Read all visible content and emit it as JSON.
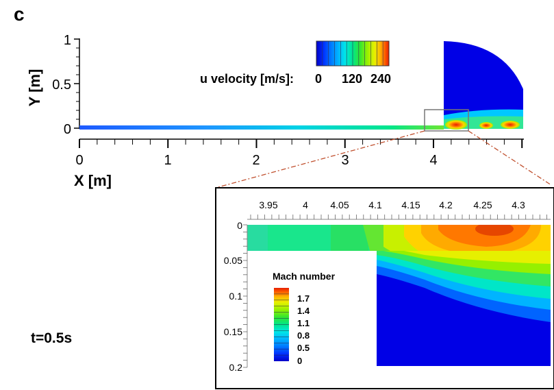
{
  "panel_label": "c",
  "time_label": "t=0.5s",
  "main_plot": {
    "x_axis_label": "X [m]",
    "y_axis_label": "Y [m]",
    "x_ticks": [
      "0",
      "1",
      "2",
      "3",
      "4"
    ],
    "y_ticks": [
      "0",
      "0.5",
      "1"
    ],
    "colorbar_title": "u velocity [m/s]:",
    "colorbar_ticks": [
      "0",
      "120",
      "240"
    ]
  },
  "inset_plot": {
    "x_ticks": [
      "3.95",
      "4",
      "4.05",
      "4.1",
      "4.15",
      "4.2",
      "4.25",
      "4.3"
    ],
    "y_ticks": [
      "0",
      "0.05",
      "0.1",
      "0.15",
      "0.2"
    ],
    "legend_title": "Mach number",
    "legend_ticks": [
      "1.7",
      "1.4",
      "1.1",
      "0.8",
      "0.5",
      "0"
    ]
  },
  "colors": {
    "jet": [
      "#0000c8",
      "#0030ff",
      "#0078ff",
      "#00b4ff",
      "#00e6e6",
      "#00e68c",
      "#32e632",
      "#96f000",
      "#e6f000",
      "#ffd200",
      "#ff9600",
      "#ff5a00",
      "#e61e00"
    ],
    "zoom_line": "#c0502e"
  }
}
